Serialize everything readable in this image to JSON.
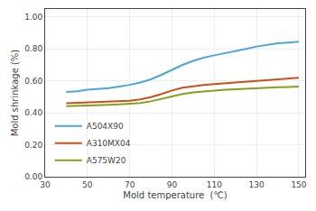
{
  "chart_data": {
    "type": "line",
    "xlabel": "Mold temperature  (℃)",
    "ylabel": "Mold shrinkage (%)",
    "xlim": [
      30,
      153
    ],
    "ylim": [
      0.0,
      1.05
    ],
    "xticks": [
      30,
      50,
      70,
      90,
      110,
      130,
      150
    ],
    "yticks": [
      {
        "value": 0.0,
        "label": "0.00"
      },
      {
        "value": 0.2,
        "label": "0.20"
      },
      {
        "value": 0.4,
        "label": "0.40"
      },
      {
        "value": 0.6,
        "label": "0.60"
      },
      {
        "value": 0.8,
        "label": "0.80"
      },
      {
        "value": 1.0,
        "label": "1.00"
      }
    ],
    "grid": true,
    "legend": "lower left",
    "x": [
      40,
      45,
      50,
      55,
      60,
      65,
      70,
      75,
      80,
      85,
      90,
      95,
      100,
      105,
      110,
      115,
      120,
      125,
      130,
      135,
      140,
      145,
      150
    ],
    "series": [
      {
        "name": "A504X90",
        "color": "#4da6d8",
        "values": [
          0.53,
          0.535,
          0.545,
          0.55,
          0.555,
          0.565,
          0.575,
          0.59,
          0.61,
          0.638,
          0.67,
          0.7,
          0.725,
          0.745,
          0.76,
          0.772,
          0.785,
          0.8,
          0.815,
          0.825,
          0.835,
          0.84,
          0.845
        ]
      },
      {
        "name": "A310MX04",
        "color": "#c8501a",
        "values": [
          0.46,
          0.462,
          0.464,
          0.466,
          0.468,
          0.472,
          0.476,
          0.484,
          0.498,
          0.518,
          0.54,
          0.557,
          0.568,
          0.575,
          0.58,
          0.585,
          0.59,
          0.595,
          0.6,
          0.605,
          0.61,
          0.615,
          0.62
        ]
      },
      {
        "name": "A575W20",
        "color": "#80a020",
        "values": [
          0.442,
          0.443,
          0.445,
          0.447,
          0.45,
          0.453,
          0.457,
          0.462,
          0.472,
          0.488,
          0.505,
          0.518,
          0.528,
          0.535,
          0.54,
          0.545,
          0.548,
          0.552,
          0.555,
          0.558,
          0.56,
          0.562,
          0.565
        ]
      }
    ]
  }
}
